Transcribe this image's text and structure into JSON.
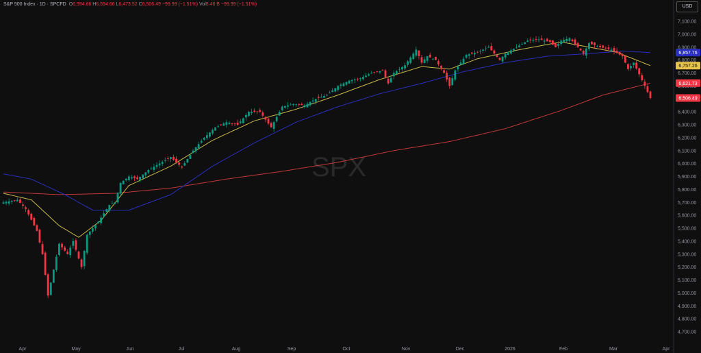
{
  "header": {
    "symbol": "S&P 500 Index · 1D · SPCFD",
    "o_label": "O",
    "o_value": "6,594.66",
    "h_label": "H",
    "h_value": "6,594.66",
    "l_label": "L",
    "l_value": "6,473.52",
    "c_label": "C",
    "c_value": "6,506.49",
    "change": "−99.99 (−1.51%)",
    "vol_label": "Vol",
    "vol_value": "8.46 B",
    "vol_change": "−99.99 (−1.51%)"
  },
  "currency": "USD",
  "watermark": "SPX",
  "colors": {
    "up": "#089981",
    "down": "#f23645",
    "ma_short": "#c9b94a",
    "ma_mid": "#2b2fbf",
    "ma_long": "#c2383a",
    "background": "#0f0f0f"
  },
  "chart_data": {
    "type": "candlestick",
    "y_range": [
      4650,
      7180
    ],
    "y_ticks": [
      "7,100.00",
      "7,000.00",
      "6,900.00",
      "6,800.00",
      "6,700.00",
      "6,600.00",
      "6,500.00",
      "6,400.00",
      "6,300.00",
      "6,200.00",
      "6,100.00",
      "6,000.00",
      "5,900.00",
      "5,800.00",
      "5,700.00",
      "5,600.00",
      "5,500.00",
      "5,400.00",
      "5,300.00",
      "5,200.00",
      "5,100.00",
      "5,000.00",
      "4,900.00",
      "4,800.00",
      "4,700.00"
    ],
    "x_ticks": [
      "Apr",
      "May",
      "Jun",
      "Jul",
      "Aug",
      "Sep",
      "Oct",
      "Nov",
      "Dec",
      "2026",
      "Feb",
      "Mar",
      "Apr"
    ],
    "price_tags": [
      {
        "value": 6857.76,
        "label": "6,857.76",
        "color": "#2b2fbf"
      },
      {
        "value": 6757.26,
        "label": "6,757.26",
        "color": "#e8c34a"
      },
      {
        "value": 6621.73,
        "label": "6,621.73",
        "color": "#f23645"
      },
      {
        "value": 6506.49,
        "label": "6,506.49",
        "color": "#f23645"
      }
    ],
    "anchors": [
      [
        0,
        5700
      ],
      [
        5,
        5720
      ],
      [
        8,
        5650
      ],
      [
        12,
        5480
      ],
      [
        14,
        5300
      ],
      [
        16,
        4980
      ],
      [
        18,
        5180
      ],
      [
        20,
        5380
      ],
      [
        23,
        5300
      ],
      [
        25,
        5400
      ],
      [
        28,
        5200
      ],
      [
        30,
        5450
      ],
      [
        34,
        5550
      ],
      [
        38,
        5680
      ],
      [
        40,
        5700
      ],
      [
        42,
        5850
      ],
      [
        45,
        5900
      ],
      [
        48,
        5880
      ],
      [
        52,
        5950
      ],
      [
        56,
        6000
      ],
      [
        60,
        6050
      ],
      [
        64,
        5970
      ],
      [
        68,
        6100
      ],
      [
        72,
        6200
      ],
      [
        76,
        6280
      ],
      [
        80,
        6320
      ],
      [
        84,
        6300
      ],
      [
        88,
        6400
      ],
      [
        92,
        6400
      ],
      [
        96,
        6280
      ],
      [
        100,
        6440
      ],
      [
        104,
        6460
      ],
      [
        108,
        6450
      ],
      [
        112,
        6500
      ],
      [
        116,
        6530
      ],
      [
        120,
        6600
      ],
      [
        124,
        6640
      ],
      [
        128,
        6660
      ],
      [
        132,
        6700
      ],
      [
        136,
        6720
      ],
      [
        138,
        6620
      ],
      [
        140,
        6700
      ],
      [
        144,
        6760
      ],
      [
        148,
        6880
      ],
      [
        150,
        6780
      ],
      [
        152,
        6830
      ],
      [
        155,
        6800
      ],
      [
        158,
        6700
      ],
      [
        160,
        6600
      ],
      [
        162,
        6720
      ],
      [
        166,
        6840
      ],
      [
        170,
        6860
      ],
      [
        174,
        6900
      ],
      [
        176,
        6850
      ],
      [
        178,
        6800
      ],
      [
        180,
        6850
      ],
      [
        184,
        6900
      ],
      [
        188,
        6950
      ],
      [
        192,
        6960
      ],
      [
        196,
        6940
      ],
      [
        198,
        6900
      ],
      [
        200,
        6950
      ],
      [
        203,
        6970
      ],
      [
        206,
        6900
      ],
      [
        208,
        6850
      ],
      [
        210,
        6930
      ],
      [
        214,
        6900
      ],
      [
        218,
        6880
      ],
      [
        222,
        6830
      ],
      [
        224,
        6730
      ],
      [
        226,
        6780
      ],
      [
        228,
        6690
      ],
      [
        230,
        6600
      ],
      [
        232,
        6506.49
      ]
    ],
    "ma_short": [
      [
        0,
        5770
      ],
      [
        10,
        5720
      ],
      [
        20,
        5520
      ],
      [
        27,
        5430
      ],
      [
        35,
        5560
      ],
      [
        45,
        5830
      ],
      [
        60,
        5980
      ],
      [
        75,
        6180
      ],
      [
        90,
        6330
      ],
      [
        105,
        6420
      ],
      [
        120,
        6530
      ],
      [
        135,
        6650
      ],
      [
        150,
        6750
      ],
      [
        160,
        6730
      ],
      [
        170,
        6810
      ],
      [
        185,
        6880
      ],
      [
        200,
        6940
      ],
      [
        210,
        6900
      ],
      [
        220,
        6860
      ],
      [
        232,
        6757.26
      ]
    ],
    "ma_mid": [
      [
        0,
        5920
      ],
      [
        10,
        5880
      ],
      [
        22,
        5760
      ],
      [
        32,
        5640
      ],
      [
        45,
        5640
      ],
      [
        60,
        5760
      ],
      [
        75,
        5980
      ],
      [
        90,
        6160
      ],
      [
        105,
        6320
      ],
      [
        120,
        6440
      ],
      [
        135,
        6540
      ],
      [
        150,
        6620
      ],
      [
        165,
        6710
      ],
      [
        180,
        6780
      ],
      [
        195,
        6830
      ],
      [
        210,
        6850
      ],
      [
        222,
        6870
      ],
      [
        232,
        6857.76
      ]
    ],
    "ma_long": [
      [
        0,
        5780
      ],
      [
        20,
        5760
      ],
      [
        40,
        5770
      ],
      [
        60,
        5810
      ],
      [
        80,
        5880
      ],
      [
        100,
        5940
      ],
      [
        120,
        6010
      ],
      [
        140,
        6100
      ],
      [
        160,
        6170
      ],
      [
        180,
        6270
      ],
      [
        200,
        6410
      ],
      [
        215,
        6530
      ],
      [
        232,
        6621.73
      ]
    ]
  }
}
